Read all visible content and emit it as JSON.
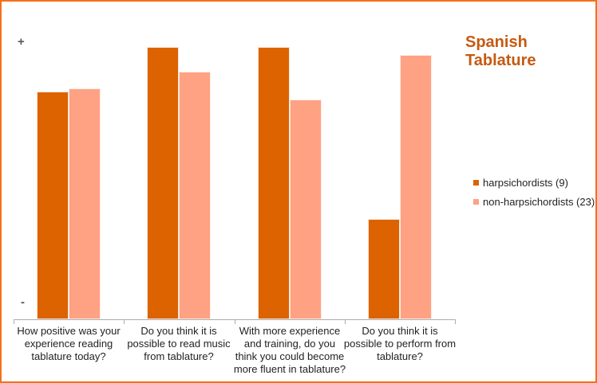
{
  "frame": {
    "border_color": "#F4711A"
  },
  "title": {
    "text": "Spanish Tablature",
    "color": "#C55A11"
  },
  "axis": {
    "plus_label": "+",
    "minus_label": "-"
  },
  "legend": {
    "position": "right",
    "items": [
      {
        "label": "harpsichordists (9)",
        "color": "#DD6200"
      },
      {
        "label": "non-harpsichordists (23)",
        "color": "#FFA183"
      }
    ]
  },
  "chart_data": {
    "type": "bar",
    "title": "Spanish Tablature",
    "categories": [
      "How positive was your experience reading tablature today?",
      "Do you think it is possible to read music from tablature?",
      "With more experience and training, do you think you could become more fluent in tablature?",
      "Do you think it is possible to perform from tablature?"
    ],
    "categories_display_lines": [
      [
        "How positive was your",
        "experience reading",
        "tablature today?"
      ],
      [
        "Do you think it is",
        "possible to read music",
        "from tablature?"
      ],
      [
        "With more experience",
        "and training, do you",
        "think you could become",
        "more fluent in tablature?"
      ],
      [
        "Do you think it is",
        "possible to perform from",
        "tablature?"
      ]
    ],
    "series": [
      {
        "name": "harpsichordists (9)",
        "color": "#DD6200",
        "values": [
          0.82,
          0.98,
          0.98,
          0.36
        ]
      },
      {
        "name": "non-harpsichordists (23)",
        "color": "#FFA183",
        "values": [
          0.83,
          0.89,
          0.79,
          0.95
        ]
      }
    ],
    "yaxis": {
      "top_label": "+",
      "bottom_label": "-",
      "note": "qualitative axis from - to +; values are fractions of the + level"
    },
    "legend_position": "right",
    "grid": false
  }
}
